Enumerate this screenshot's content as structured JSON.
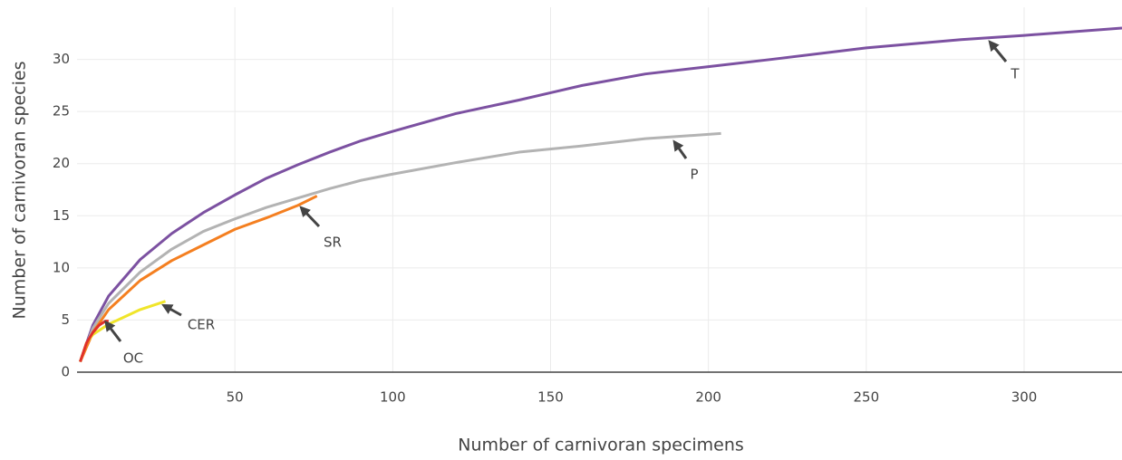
{
  "chart_data": {
    "type": "line",
    "xlabel": "Number of carnivoran specimens",
    "ylabel": "Number of carnivoran species",
    "xlim": [
      0,
      331
    ],
    "ylim": [
      0,
      35
    ],
    "xticks": [
      50,
      100,
      150,
      200,
      250,
      300
    ],
    "yticks": [
      0,
      5,
      10,
      15,
      20,
      25,
      30
    ],
    "grid": true,
    "series": [
      {
        "name": "T",
        "color": "#7c51a1",
        "x": [
          1,
          5,
          10,
          20,
          30,
          40,
          50,
          60,
          70,
          80,
          90,
          100,
          120,
          140,
          150,
          160,
          180,
          200,
          220,
          250,
          280,
          300,
          331
        ],
        "values": [
          1,
          4.5,
          7.3,
          10.8,
          13.3,
          15.3,
          17,
          18.6,
          19.9,
          21.1,
          22.2,
          23.1,
          24.8,
          26.1,
          26.8,
          27.5,
          28.6,
          29.3,
          30,
          31.1,
          31.9,
          32.3,
          33
        ]
      },
      {
        "name": "P",
        "color": "#b3b3b3",
        "x": [
          1,
          5,
          10,
          20,
          30,
          40,
          50,
          60,
          70,
          80,
          90,
          100,
          120,
          140,
          160,
          180,
          190,
          204
        ],
        "values": [
          1,
          4.2,
          6.6,
          9.6,
          11.8,
          13.5,
          14.7,
          15.8,
          16.7,
          17.6,
          18.4,
          19,
          20.1,
          21.1,
          21.7,
          22.4,
          22.6,
          22.9
        ]
      },
      {
        "name": "SR",
        "color": "#f47f20",
        "x": [
          1,
          5,
          10,
          20,
          30,
          40,
          50,
          60,
          70,
          76
        ],
        "values": [
          1,
          3.8,
          6,
          8.8,
          10.7,
          12.2,
          13.7,
          14.8,
          16,
          16.9
        ]
      },
      {
        "name": "CER",
        "color": "#f0e52a",
        "x": [
          1,
          3,
          5,
          10,
          15,
          20,
          25,
          28
        ],
        "values": [
          1,
          2.8,
          3.6,
          4.6,
          5.3,
          6,
          6.5,
          6.8
        ]
      },
      {
        "name": "OC",
        "color": "#e0302a",
        "x": [
          1,
          3,
          5,
          7,
          9,
          10
        ],
        "values": [
          1,
          2.8,
          3.8,
          4.5,
          4.9,
          4.9
        ]
      }
    ]
  }
}
